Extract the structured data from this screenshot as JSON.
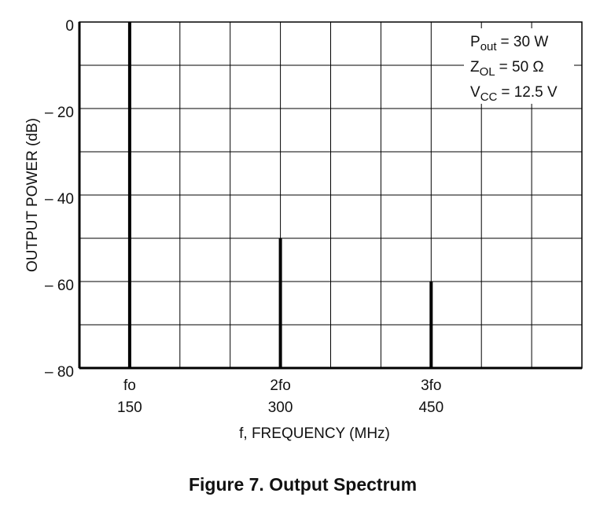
{
  "chart_data": {
    "type": "bar",
    "title": "Figure 7.  Output Spectrum",
    "xlabel": "f, FREQUENCY (MHz)",
    "ylabel": "OUTPUT POWER (dB)",
    "x": [
      150,
      300,
      450
    ],
    "values": [
      0,
      -50,
      -60
    ],
    "color": "#000000",
    "xlim": [
      100,
      600
    ],
    "ylim": [
      -80,
      0
    ],
    "xticks": [
      150,
      300,
      450
    ],
    "xtick_names": [
      "fo",
      "2fo",
      "3fo"
    ],
    "xgrid": [
      100,
      150,
      200,
      250,
      300,
      350,
      400,
      450,
      500,
      550,
      600
    ],
    "yticks": [
      {
        "value": 0,
        "label": "0"
      },
      {
        "value": -20,
        "label": "– 20"
      },
      {
        "value": -40,
        "label": "– 40"
      },
      {
        "value": -60,
        "label": "– 60"
      },
      {
        "value": -80,
        "label": "– 80"
      }
    ],
    "ygrid": [
      -70,
      -50,
      -30,
      -10
    ],
    "grid": true,
    "annotations": [
      {
        "symbol": "P",
        "subscript": "out",
        "text": "= 30 W"
      },
      {
        "symbol": "Z",
        "subscript": "OL",
        "text": "= 50 Ω"
      },
      {
        "symbol": "V",
        "subscript": "CC",
        "text": "= 12.5 V"
      }
    ]
  }
}
